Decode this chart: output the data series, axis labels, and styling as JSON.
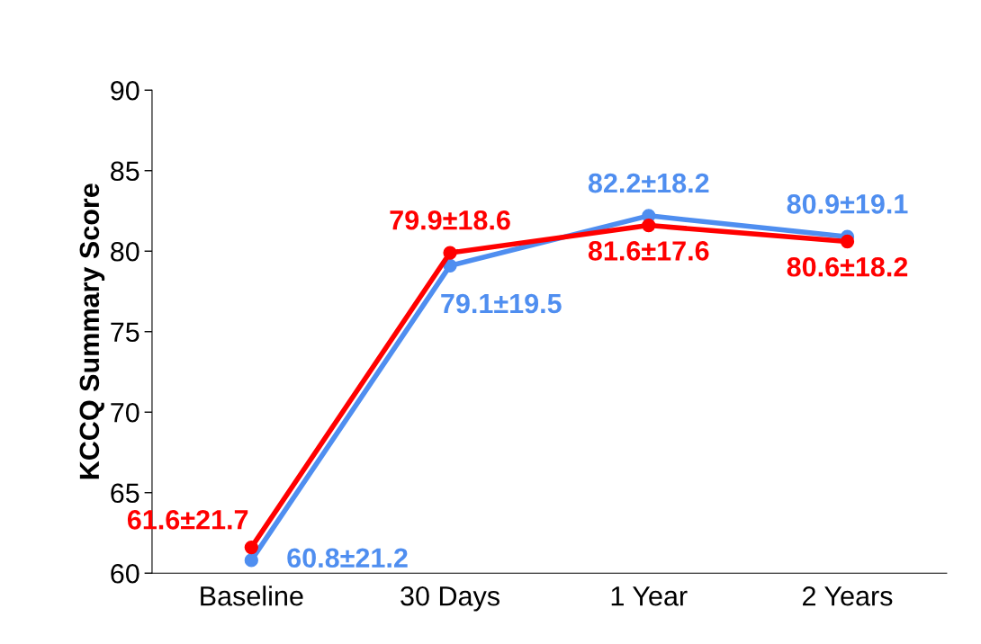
{
  "chart_data": {
    "type": "line",
    "ylabel": "KCCQ Summary Score",
    "categories": [
      "Baseline",
      "30 Days",
      "1 Year",
      "2 Years"
    ],
    "series": [
      {
        "color": "#4f8ef0",
        "values": [
          60.8,
          79.1,
          82.2,
          80.9
        ],
        "value_labels": [
          "60.8±21.2",
          "79.1±19.5",
          "82.2±18.2",
          "80.9±19.1"
        ]
      },
      {
        "color": "#ff0000",
        "values": [
          61.6,
          79.9,
          81.6,
          80.6
        ],
        "value_labels": [
          "61.6±21.7",
          "79.9±18.6",
          "81.6±17.6",
          "80.6±18.2"
        ]
      }
    ],
    "ylim": [
      60,
      90
    ],
    "yticks": [
      60,
      65,
      70,
      75,
      80,
      85,
      90
    ],
    "marker": "circle",
    "grid": false,
    "legend": false
  }
}
